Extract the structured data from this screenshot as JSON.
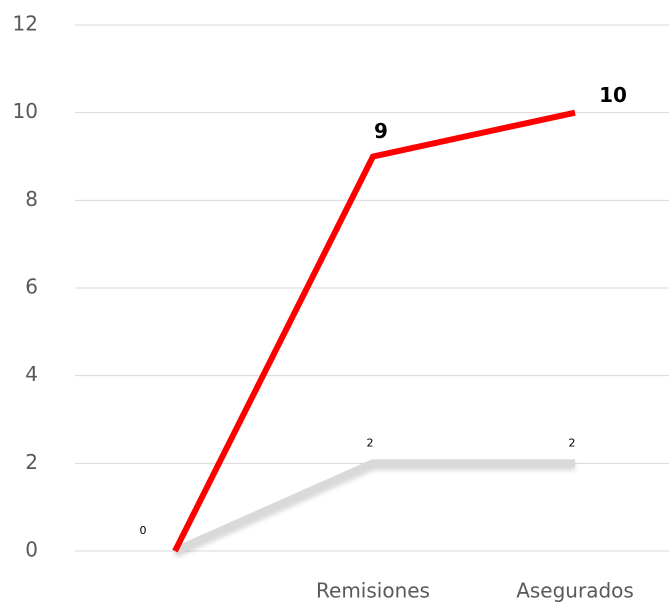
{
  "chart_data": {
    "type": "line",
    "categories": [
      null,
      "Remisiones",
      "Asegurados"
    ],
    "series": [
      {
        "name": null,
        "color": "#d9d9d9",
        "values": [
          0,
          2,
          2
        ],
        "value_labels": [
          "0",
          "2",
          "2"
        ]
      },
      {
        "name": null,
        "color": "#ff0000",
        "values": [
          0,
          9,
          10
        ],
        "value_labels": [
          null,
          "9",
          "10"
        ]
      }
    ],
    "ylim": [
      0,
      12
    ],
    "yticks": [
      0,
      2,
      4,
      6,
      8,
      10,
      12
    ],
    "grid": true
  }
}
